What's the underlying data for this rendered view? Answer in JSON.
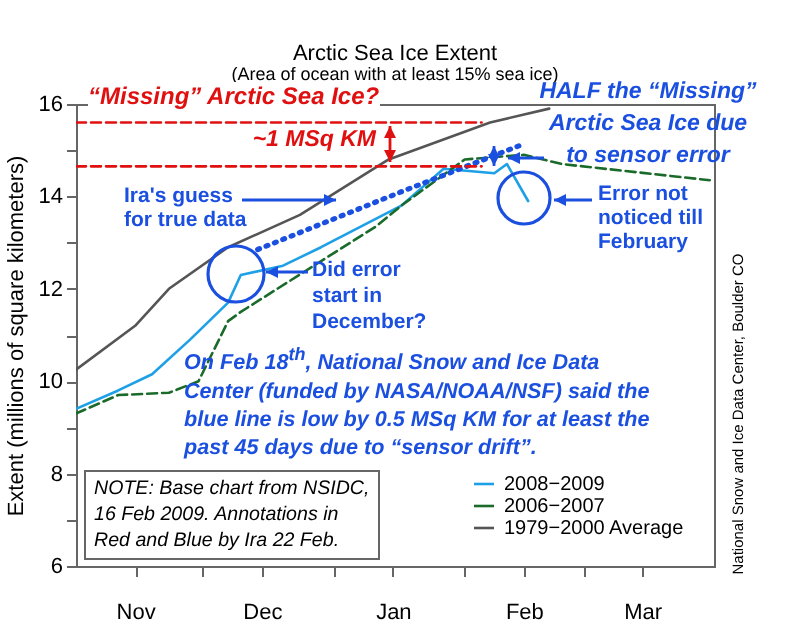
{
  "chart_data": {
    "type": "line",
    "title": "Arctic Sea Ice Extent",
    "subtitle": "(Area of ocean with at least 15% sea ice)",
    "ylabel": "Extent (millions of square kilometers)",
    "xlim": [
      "2008-11-01",
      "2009-04-01"
    ],
    "xticks": [
      {
        "value": "2008-11-15",
        "label": "Nov"
      },
      {
        "value": "2008-12-01",
        "label": null
      },
      {
        "value": "2008-12-15",
        "label": "Dec"
      },
      {
        "value": "2009-01-01",
        "label": null
      },
      {
        "value": "2009-01-15",
        "label": "Jan"
      },
      {
        "value": "2009-02-01",
        "label": null
      },
      {
        "value": "2009-02-15",
        "label": "Feb"
      },
      {
        "value": "2009-03-01",
        "label": null
      },
      {
        "value": "2009-03-15",
        "label": "Mar"
      }
    ],
    "ylim": [
      6,
      16
    ],
    "yticks": [
      6,
      {
        "value": 7,
        "label": null
      },
      8,
      {
        "value": 9,
        "label": null
      },
      10,
      {
        "value": 11,
        "label": null
      },
      12,
      {
        "value": 13,
        "label": null
      },
      14,
      {
        "value": 15,
        "label": null
      },
      16
    ],
    "legend": "bottom right",
    "series": [
      {
        "name": "2008−2009",
        "color": "#1ea0e6",
        "line_style": "solid",
        "x": [
          "2008-11-01",
          "2008-11-11",
          "2008-11-19",
          "2008-11-28",
          "2008-12-07",
          "2008-12-10",
          "2008-12-20",
          "2008-12-29",
          "2009-01-17",
          "2009-01-27",
          "2009-02-08",
          "2009-02-11",
          "2009-02-16"
        ],
        "values": [
          9.4,
          9.8,
          10.15,
          10.9,
          11.7,
          12.3,
          12.5,
          12.9,
          13.8,
          14.6,
          14.5,
          14.7,
          13.9
        ]
      },
      {
        "name": "2006−2007",
        "color": "#1a6b2a",
        "line_style": "dashed",
        "x": [
          "2008-11-01",
          "2008-11-11",
          "2008-11-23",
          "2008-11-30",
          "2008-12-07",
          "2008-12-10",
          "2009-01-11",
          "2009-01-17",
          "2009-02-01",
          "2009-02-15",
          "2009-02-24",
          "2009-03-31"
        ],
        "values": [
          9.3,
          9.7,
          9.75,
          10.0,
          11.3,
          11.5,
          13.35,
          13.8,
          14.8,
          14.9,
          14.7,
          14.35
        ]
      },
      {
        "name": "1979−2000 Average",
        "color": "#555555",
        "line_style": "solid",
        "x": [
          "2008-11-01",
          "2008-11-15",
          "2008-11-23",
          "2008-12-07",
          "2008-12-24",
          "2009-01-14",
          "2009-02-07",
          "2009-02-21"
        ],
        "values": [
          10.25,
          11.2,
          12.0,
          12.9,
          13.6,
          14.8,
          15.6,
          15.9
        ]
      },
      {
        "color": "#1a4fe0",
        "line_style": "dotted",
        "x": [
          "2008-12-14",
          "2009-01-17",
          "2009-02-14"
        ],
        "values": [
          12.85,
          14.1,
          15.1
        ]
      },
      {
        "color": "#e01010",
        "line_style": "dashed",
        "x": [
          "2008-11-01",
          "2009-02-05"
        ],
        "values": [
          15.6,
          15.6
        ]
      },
      {
        "color": "#e01010",
        "line_style": "dashed",
        "x": [
          "2008-11-01",
          "2009-02-05"
        ],
        "values": [
          14.65,
          14.65
        ]
      }
    ],
    "annotations": [
      "“Missing” Arctic Sea Ice?",
      "~1 MSq KM",
      "HALF the “Missing”\nArctic Sea Ice due\nto sensor error",
      "Ira's guess\nfor true data",
      "Did error\nstart in\nDecember?",
      "Error not\nnoticed till\nFebruary",
      "On Feb 18$^{th}$, National Snow and Ice Data\nCenter (funded by NASA/NOAA/NSF) said the\nblue line is low by 0.5 MSq KM for at least the\npast 45 days due to “sensor drift”.",
      "NOTE: Base chart from NSIDC,\n16 Feb 2009. Annotations in\nRed and Blue by Ira 22 Feb.",
      "National Snow and Ice Data Center, Boulder CO"
    ]
  }
}
